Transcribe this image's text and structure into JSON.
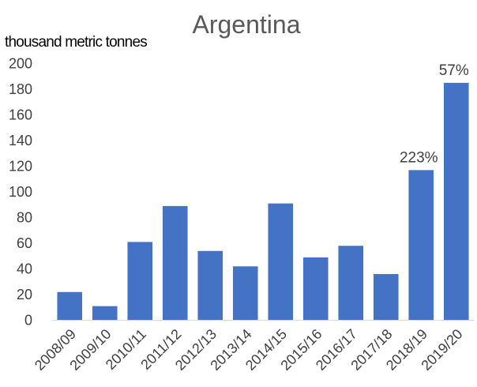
{
  "chart_data": {
    "type": "bar",
    "title": "Argentina",
    "ylabel": "thousand metric tonnes",
    "xlabel": "",
    "categories": [
      "2008/09",
      "2009/10",
      "2010/11",
      "2011/12",
      "2012/13",
      "2013/14",
      "2014/15",
      "2015/16",
      "2016/17",
      "2017/18",
      "2018/19",
      "2019/20"
    ],
    "values": [
      22,
      11,
      61,
      89,
      54,
      42,
      91,
      49,
      58,
      36,
      117,
      185
    ],
    "ylim": [
      0,
      200
    ],
    "yticks": [
      "0",
      "20",
      "40",
      "60",
      "80",
      "100",
      "120",
      "140",
      "160",
      "180",
      "200"
    ],
    "grid": false,
    "legend": "none",
    "bar_color": "#4472C4",
    "annotations": [
      {
        "category": "2018/19",
        "text": "223%"
      },
      {
        "category": "2019/20",
        "text": "57%"
      }
    ]
  }
}
